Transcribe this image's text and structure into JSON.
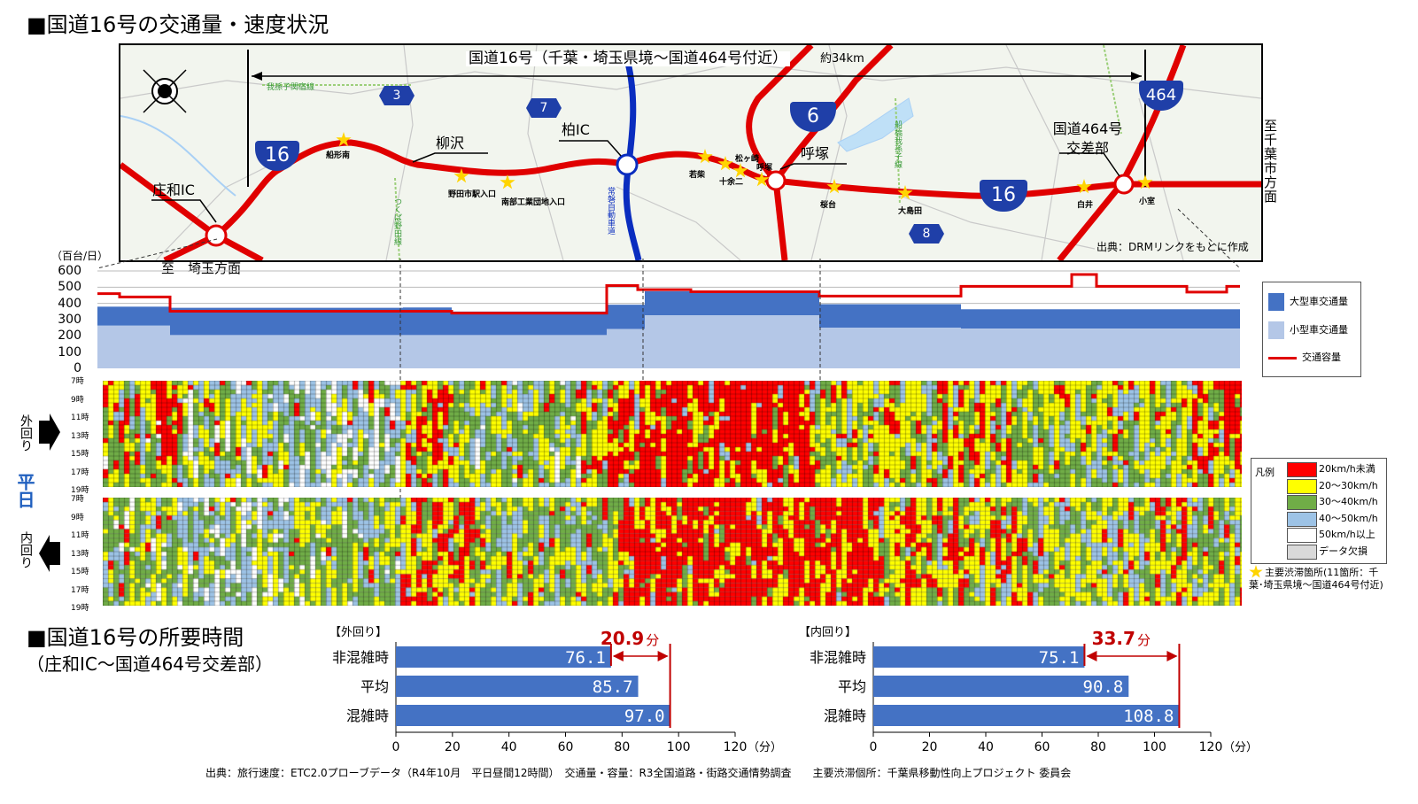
{
  "titles": {
    "section1": "■国道16号の交通量・速度状況",
    "section2": "■国道16号の所要時間",
    "section2_sub": "（庄和IC～国道464号交差部）"
  },
  "map": {
    "span_label": "国道16号（千葉・埼玉県境～国道464号付近）",
    "span_km": "約34km",
    "source": "出典：DRMリンクをもとに作成",
    "to_chiba": "至千葉市方面",
    "to_saitama": "至　埼玉方面",
    "railway_agashi": "我孫子関宿線",
    "railway_tsukuba": "つくば野田線",
    "railway_funabashi": "船橋我孫子線",
    "expressway": "常磐自動車道",
    "route_badges": [
      "16",
      "16",
      "3",
      "7",
      "6",
      "8",
      "464"
    ],
    "junctions": [
      "庄和IC",
      "柳沢",
      "柏IC",
      "呼塚",
      "国道464号交差部"
    ],
    "bottlenecks": [
      "船形南",
      "野田市駅入口",
      "南部工業団地入口",
      "若柴",
      "十余二",
      "松ヶ崎",
      "呼塚",
      "桜台",
      "大島田",
      "白井",
      "小室"
    ]
  },
  "traffic_chart": {
    "unit_label": "（百台/日）",
    "y_ticks": [
      "600",
      "500",
      "400",
      "300",
      "200",
      "100",
      "0"
    ],
    "legend": [
      "大型車交通量",
      "小型車交通量",
      "交通容量"
    ],
    "colors": {
      "large": "#4472c4",
      "small": "#b4c7e7",
      "capacity": "#e00000"
    }
  },
  "speed_chart": {
    "day_label": "平日",
    "outer_label": "外回り",
    "inner_label": "内回り",
    "hour_labels": [
      "7時",
      "9時",
      "11時",
      "13時",
      "15時",
      "17時",
      "19時"
    ],
    "legend_title": "凡例",
    "legend": [
      {
        "label": "20km/h未満",
        "color": "#ff0000"
      },
      {
        "label": "20～30km/h",
        "color": "#ffff00"
      },
      {
        "label": "30～40km/h",
        "color": "#70ad47"
      },
      {
        "label": "40～50km/h",
        "color": "#9dc3e6"
      },
      {
        "label": "50km/h以上",
        "color": "#ffffff"
      },
      {
        "label": "データ欠損",
        "color": "#d9d9d9"
      }
    ],
    "bottleneck_note": "主要渋滞箇所(11箇所：千葉･埼玉県境～国道464号付近)"
  },
  "chart_data": [
    {
      "type": "bar",
      "title": "【外回り】",
      "categories": [
        "非混雑時",
        "平均",
        "混雑時"
      ],
      "values": [
        76.1,
        85.7,
        97.0
      ],
      "value_labels": [
        "76.1",
        "85.7",
        "97.0"
      ],
      "xlim": [
        0,
        120
      ],
      "x_ticks": [
        "0",
        "20",
        "40",
        "60",
        "80",
        "100",
        "120"
      ],
      "unit": "（分）",
      "difference": "20.9",
      "difference_unit": "分"
    },
    {
      "type": "bar",
      "title": "【内回り】",
      "categories": [
        "非混雑時",
        "平均",
        "混雑時"
      ],
      "values": [
        75.1,
        90.8,
        108.8
      ],
      "value_labels": [
        "75.1",
        "90.8",
        "108.8"
      ],
      "xlim": [
        0,
        120
      ],
      "x_ticks": [
        "0",
        "20",
        "40",
        "60",
        "80",
        "100",
        "120"
      ],
      "unit": "（分）",
      "difference": "33.7",
      "difference_unit": "分"
    }
  ],
  "footer": "出典：旅行速度：ETC2.0プローブデータ（R4年10月　平日昼間12時間）　交通量・容量：R3全国道路・街路交通情勢調査　　主要渋滞個所：千葉県移動性向上プロジェクト 委員会"
}
